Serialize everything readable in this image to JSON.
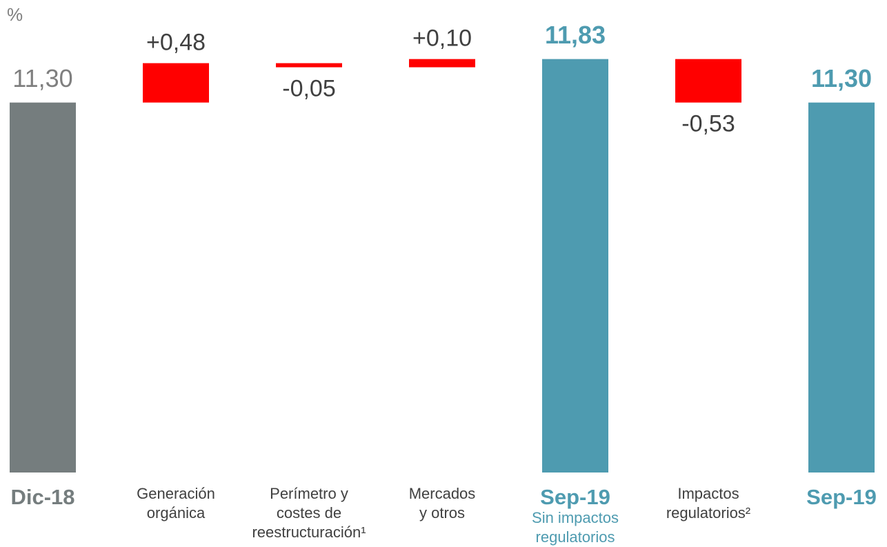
{
  "chart_data": {
    "type": "waterfall",
    "y_label": "%",
    "categories": [
      "Dic-18",
      "Generación\norgánica",
      "Perímetro y\ncostes de\nreestructuración¹",
      "Mercados\ny otros",
      "Sep-19",
      "Impactos\nregulatorios²",
      "Sep-19"
    ],
    "subcategories": [
      null,
      null,
      null,
      null,
      "Sin impactos\nregulatorios",
      null,
      null
    ],
    "measures": [
      "absolute",
      "relative",
      "relative",
      "relative",
      "total",
      "relative",
      "total"
    ],
    "values": [
      11.3,
      0.48,
      -0.05,
      0.1,
      11.83,
      -0.53,
      11.3
    ],
    "value_labels": [
      "11,30",
      "+0,48",
      "-0,05",
      "+0,10",
      "11,83",
      "-0,53",
      "11,30"
    ],
    "colors": [
      "#757d7e",
      "#ff0000",
      "#ff0000",
      "#ff0000",
      "#4e9bb0",
      "#ff0000",
      "#4e9bb0"
    ],
    "ylim": [
      6.79,
      12.55
    ]
  }
}
